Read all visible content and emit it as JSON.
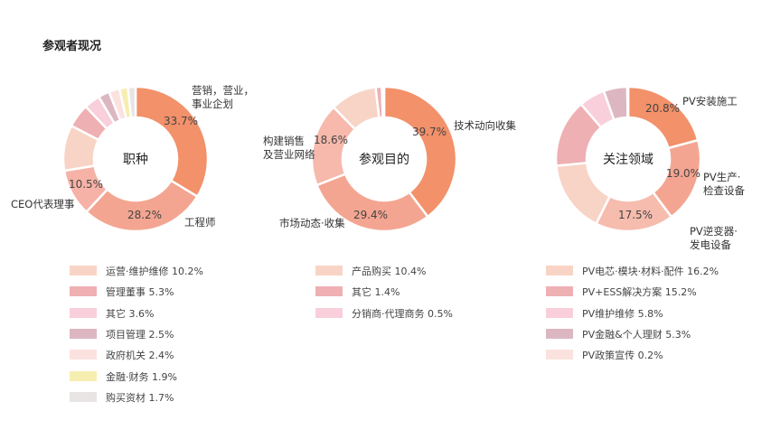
{
  "header": {
    "title": "参观者现况"
  },
  "chart_data": [
    {
      "type": "pie",
      "center_label": "职种",
      "slices": [
        {
          "label": "营销，营业，事业企划",
          "value": 33.7,
          "color": "#f2916a"
        },
        {
          "label": "工程师",
          "value": 28.2,
          "color": "#f4a591"
        },
        {
          "label": "CEO代表理事",
          "value": 10.5,
          "color": "#f6b2a7"
        },
        {
          "label": "运营·维护维修",
          "value": 10.2,
          "color": "#f8d4c6"
        },
        {
          "label": "管理董事",
          "value": 5.3,
          "color": "#efb0b3"
        },
        {
          "label": "其它",
          "value": 3.6,
          "color": "#f8cfda"
        },
        {
          "label": "项目管理",
          "value": 2.5,
          "color": "#dcb7c2"
        },
        {
          "label": "政府机关",
          "value": 2.4,
          "color": "#fce2df"
        },
        {
          "label": "金融·财务",
          "value": 1.9,
          "color": "#f6eeb0"
        },
        {
          "label": "购买资材",
          "value": 1.7,
          "color": "#e8e4e4"
        }
      ],
      "callouts": [
        {
          "lines": [
            "营销，营业，",
            "事业企划"
          ]
        },
        {
          "lines": [
            "工程师"
          ]
        },
        {
          "lines": [
            "CEO代表理事"
          ]
        }
      ],
      "pct_labels": [
        "33.7%",
        "28.2%",
        "10.5%"
      ],
      "legend": [
        {
          "label": "运营·维护维修",
          "value": "10.2%"
        },
        {
          "label": "管理董事",
          "value": "5.3%"
        },
        {
          "label": "其它",
          "value": "3.6%"
        },
        {
          "label": "项目管理",
          "value": "2.5%"
        },
        {
          "label": "政府机关",
          "value": "2.4%"
        },
        {
          "label": "金融·财务",
          "value": "1.9%"
        },
        {
          "label": "购买资材",
          "value": "1.7%"
        }
      ]
    },
    {
      "type": "pie",
      "center_label": "参观目的",
      "slices": [
        {
          "label": "技术动向收集",
          "value": 39.7,
          "color": "#f2916a"
        },
        {
          "label": "市场动态·收集",
          "value": 29.4,
          "color": "#f4a591"
        },
        {
          "label": "构建销售及营业网络",
          "value": 18.6,
          "color": "#f6b9ac"
        },
        {
          "label": "产品购买",
          "value": 10.4,
          "color": "#f8d4c6"
        },
        {
          "label": "其它",
          "value": 1.4,
          "color": "#efb0b3"
        },
        {
          "label": "分销商·代理商务",
          "value": 0.5,
          "color": "#f8cfda"
        }
      ],
      "callouts": [
        {
          "lines": [
            "技术动向收集"
          ]
        },
        {
          "lines": [
            "市场动态·收集"
          ]
        },
        {
          "lines": [
            "构建销售",
            "及营业网络"
          ]
        }
      ],
      "pct_labels": [
        "39.7%",
        "29.4%",
        "18.6%"
      ],
      "legend": [
        {
          "label": "产品购买",
          "value": "10.4%"
        },
        {
          "label": "其它",
          "value": "1.4%"
        },
        {
          "label": "分销商·代理商务",
          "value": "0.5%"
        }
      ]
    },
    {
      "type": "pie",
      "center_label": "关注领域",
      "slices": [
        {
          "label": "PV安装施工",
          "value": 20.8,
          "color": "#f2916a"
        },
        {
          "label": "PV生产·检查设备",
          "value": 19.0,
          "color": "#f4a591"
        },
        {
          "label": "PV逆变器·发电设备",
          "value": 17.5,
          "color": "#f6bcae"
        },
        {
          "label": "PV电芯·模块·材料·配件",
          "value": 16.2,
          "color": "#f8d4c6"
        },
        {
          "label": "PV+ESS解决方案",
          "value": 15.2,
          "color": "#efb0b3"
        },
        {
          "label": "PV维护维修",
          "value": 5.8,
          "color": "#f8cfda"
        },
        {
          "label": "PV金融&个人理财",
          "value": 5.3,
          "color": "#dcb7c2"
        },
        {
          "label": "PV政策宣传",
          "value": 0.2,
          "color": "#fce2df"
        }
      ],
      "callouts": [
        {
          "lines": [
            "PV安装施工"
          ]
        },
        {
          "lines": [
            "PV生产·",
            "检查设备"
          ]
        },
        {
          "lines": [
            "PV逆变器·",
            "发电设备"
          ]
        }
      ],
      "pct_labels": [
        "20.8%",
        "19.0%",
        "17.5%"
      ],
      "legend": [
        {
          "label": "PV电芯·模块·材料·配件",
          "value": "16.2%"
        },
        {
          "label": "PV+ESS解决方案",
          "value": "15.2%"
        },
        {
          "label": "PV维护维修",
          "value": "5.8%"
        },
        {
          "label": "PV金融&个人理财",
          "value": "5.3%"
        },
        {
          "label": "PV政策宣传",
          "value": "0.2%"
        }
      ]
    }
  ]
}
